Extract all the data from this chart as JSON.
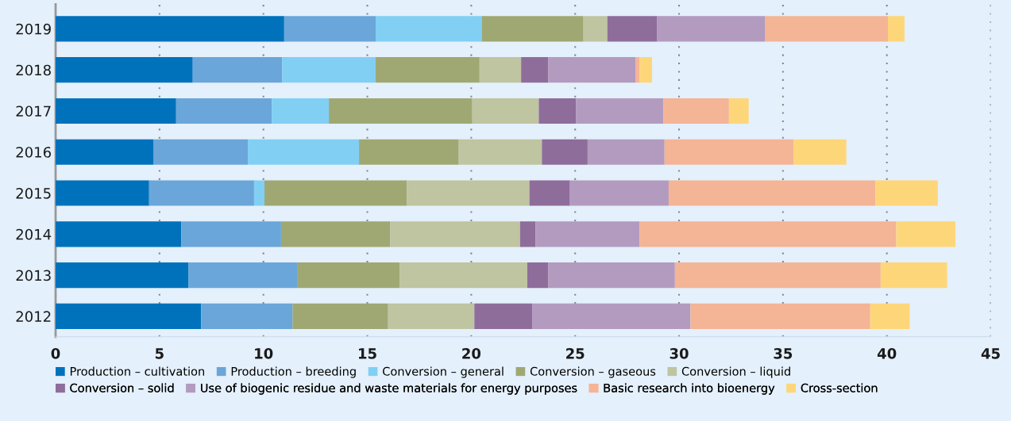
{
  "chart_data": {
    "type": "bar",
    "orientation": "horizontal",
    "stacked": true,
    "categories": [
      "2019",
      "2018",
      "2017",
      "2016",
      "2015",
      "2014",
      "2013",
      "2012"
    ],
    "series": [
      {
        "name": "Production – cultivation",
        "color": "#0072bc",
        "values": [
          11.0,
          6.6,
          5.8,
          4.7,
          4.5,
          6.05,
          6.4,
          7.0
        ]
      },
      {
        "name": "Production – breeding",
        "color": "#6aa6d9",
        "values": [
          4.4,
          4.3,
          4.6,
          4.55,
          5.05,
          4.8,
          5.25,
          4.4
        ]
      },
      {
        "name": "Conversion – general",
        "color": "#82cff4",
        "values": [
          5.1,
          4.5,
          2.75,
          5.35,
          0.5,
          0,
          0,
          0
        ]
      },
      {
        "name": "Conversion – gaseous",
        "color": "#9fa873",
        "values": [
          4.9,
          5.0,
          6.9,
          4.8,
          6.85,
          5.25,
          4.9,
          4.6
        ]
      },
      {
        "name": "Conversion – liquid",
        "color": "#bfc4a1",
        "values": [
          1.15,
          2.0,
          3.2,
          4.0,
          5.9,
          6.25,
          6.15,
          4.15
        ]
      },
      {
        "name": "Conversion – solid",
        "color": "#8f6d9b",
        "values": [
          2.4,
          1.3,
          1.8,
          2.2,
          1.95,
          0.75,
          1.0,
          2.8
        ]
      },
      {
        "name": "Use of biogenic residue and waste materials for energy purposes",
        "color": "#b39bbf",
        "values": [
          5.2,
          4.2,
          4.2,
          3.7,
          4.75,
          5.0,
          6.1,
          7.6
        ]
      },
      {
        "name": "Basic research into bioenergy",
        "color": "#f4b496",
        "values": [
          5.9,
          0.2,
          3.15,
          6.2,
          9.95,
          12.35,
          9.9,
          8.65
        ]
      },
      {
        "name": "Cross-section",
        "color": "#fed67a",
        "values": [
          0.8,
          0.6,
          0.95,
          2.55,
          3.0,
          2.85,
          3.2,
          1.9
        ]
      }
    ],
    "xlim": [
      0,
      45
    ],
    "xticks": [
      0,
      5,
      10,
      15,
      20,
      25,
      30,
      35,
      40,
      45
    ],
    "grid": "x",
    "legend": "bottom"
  }
}
